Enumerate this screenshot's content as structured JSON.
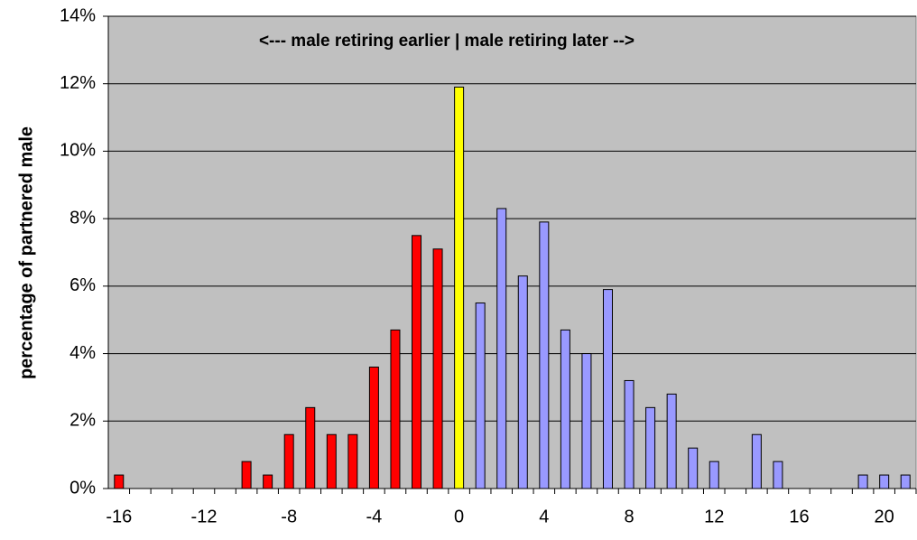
{
  "chart_data": {
    "type": "bar",
    "annotation": "<--- male retiring earlier | male retiring later -->",
    "y_label": "percentage of partnered male",
    "categories": [
      "-16",
      null,
      null,
      null,
      "-12",
      null,
      null,
      null,
      "-8",
      null,
      null,
      null,
      "-4",
      null,
      null,
      null,
      "0",
      null,
      null,
      null,
      "4",
      null,
      null,
      null,
      "8",
      null,
      null,
      null,
      "12",
      null,
      null,
      null,
      "16",
      null,
      null,
      null,
      "20",
      null
    ],
    "values": [
      0.4,
      0,
      0,
      0,
      0,
      0,
      0.8,
      0.4,
      1.6,
      2.4,
      1.6,
      1.6,
      3.6,
      4.7,
      7.5,
      7.1,
      11.9,
      5.5,
      8.3,
      6.3,
      7.9,
      4.7,
      4.0,
      5.9,
      3.2,
      2.4,
      2.8,
      1.2,
      0.8,
      0,
      1.6,
      0.8,
      0,
      0,
      0,
      0.4,
      0.4,
      0.4
    ],
    "colors": [
      "#ff0000",
      "#ff0000",
      "#ff0000",
      "#ff0000",
      "#ff0000",
      "#ff0000",
      "#ff0000",
      "#ff0000",
      "#ff0000",
      "#ff0000",
      "#ff0000",
      "#ff0000",
      "#ff0000",
      "#ff0000",
      "#ff0000",
      "#ff0000",
      "#ffff00",
      "#9999ff",
      "#9999ff",
      "#9999ff",
      "#9999ff",
      "#9999ff",
      "#9999ff",
      "#9999ff",
      "#9999ff",
      "#9999ff",
      "#9999ff",
      "#9999ff",
      "#9999ff",
      "#9999ff",
      "#9999ff",
      "#9999ff",
      "#9999ff",
      "#9999ff",
      "#9999ff",
      "#9999ff",
      "#9999ff",
      "#9999ff"
    ],
    "ylim": [
      0,
      14
    ],
    "yticks": [
      {
        "value": 0,
        "label": "0%"
      },
      {
        "value": 2,
        "label": "2%"
      },
      {
        "value": 4,
        "label": "4%"
      },
      {
        "value": 6,
        "label": "6%"
      },
      {
        "value": 8,
        "label": "8%"
      },
      {
        "value": 10,
        "label": "10%"
      },
      {
        "value": 12,
        "label": "12%"
      },
      {
        "value": 14,
        "label": "14%"
      }
    ],
    "grid": true
  }
}
